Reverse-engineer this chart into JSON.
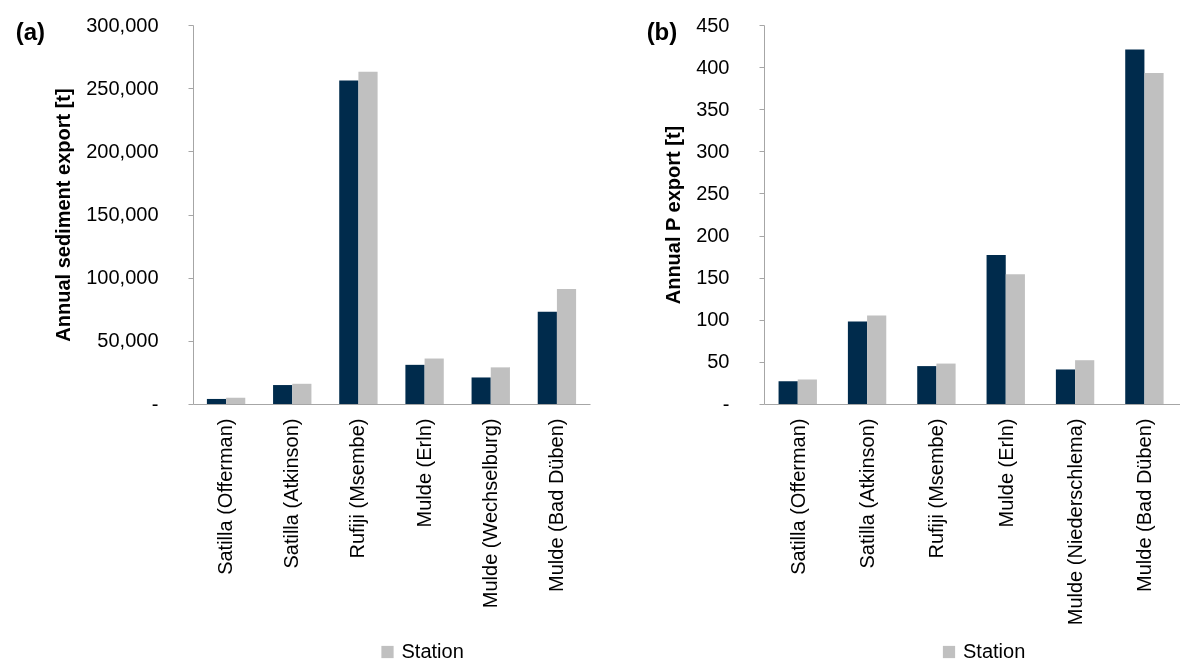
{
  "chart_data": [
    {
      "type": "bar",
      "title": "(a)",
      "ylabel": "Annual sediment export [t]",
      "categories": [
        "Satilla (Offerman)",
        "Satilla (Atkinson)",
        "Rufiji (Msembe)",
        "Mulde (Erln)",
        "Mulde (Wechselburg)",
        "Mulde (Bad Düben)"
      ],
      "series": [
        {
          "color": "#002b4c",
          "values": [
            4000,
            15000,
            256000,
            31000,
            21000,
            73000
          ]
        },
        {
          "name": "Station",
          "color": "#c0c0c0",
          "values": [
            5000,
            16000,
            263000,
            36000,
            29000,
            91000
          ]
        }
      ],
      "ylim": [
        0,
        300000
      ],
      "yticks": [
        {
          "value": 0,
          "label": "-"
        },
        {
          "value": 50000,
          "label": "50,000"
        },
        {
          "value": 100000,
          "label": "100,000"
        },
        {
          "value": 150000,
          "label": "150,000"
        },
        {
          "value": 200000,
          "label": "200,000"
        },
        {
          "value": 250000,
          "label": "250,000"
        },
        {
          "value": 300000,
          "label": "300,000"
        }
      ],
      "legend": "bottom"
    },
    {
      "type": "bar",
      "title": "(b)",
      "ylabel": "Annual P export [t]",
      "categories": [
        "Satilla (Offerman)",
        "Satilla (Atkinson)",
        "Rufiji (Msembe)",
        "Mulde (Erln)",
        "Mulde (Niederschlema)",
        "Mulde (Bad Düben)"
      ],
      "series": [
        {
          "color": "#002b4c",
          "values": [
            27,
            98,
            45,
            177,
            41,
            421
          ]
        },
        {
          "name": "Station",
          "color": "#c0c0c0",
          "values": [
            29,
            105,
            48,
            154,
            52,
            393
          ]
        }
      ],
      "ylim": [
        0,
        450
      ],
      "yticks": [
        {
          "value": 0,
          "label": "-"
        },
        50,
        100,
        150,
        200,
        250,
        300,
        350,
        400,
        450
      ],
      "legend": "bottom"
    }
  ]
}
